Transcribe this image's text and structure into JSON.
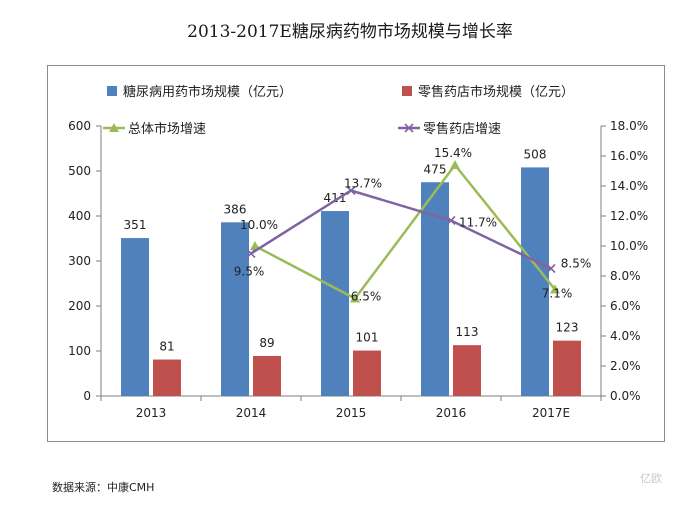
{
  "title": "2013-2017E糖尿病药物市场规模与增长率",
  "source": "数据来源：中康CMH",
  "watermark": "亿欧",
  "chart_data": {
    "type": "bar+line",
    "title": "2013-2017E糖尿病药物市场规模与增长率",
    "categories": [
      "2013",
      "2014",
      "2015",
      "2016",
      "2017E"
    ],
    "bar_series": [
      {
        "name": "糖尿病用药市场规模（亿元）",
        "values": [
          351,
          386,
          411,
          475,
          508
        ],
        "color": "#4f81bd"
      },
      {
        "name": "零售药店市场规模（亿元）",
        "values": [
          81,
          89,
          101,
          113,
          123
        ],
        "color": "#c0504d"
      }
    ],
    "line_series": [
      {
        "name": "总体市场增速",
        "marker": "triangle",
        "x": [
          "2014",
          "2015",
          "2016",
          "2017E"
        ],
        "values": [
          10.0,
          6.5,
          15.4,
          7.1
        ],
        "labels": [
          "10.0%",
          "6.5%",
          "15.4%",
          "7.1%"
        ],
        "color": "#9bbb59"
      },
      {
        "name": "零售药店增速",
        "marker": "x",
        "x": [
          "2014",
          "2015",
          "2016",
          "2017E"
        ],
        "values": [
          9.5,
          13.7,
          11.7,
          8.5
        ],
        "labels": [
          "9.5%",
          "13.7%",
          "11.7%",
          "8.5%"
        ],
        "color": "#8064a2"
      }
    ],
    "y_left": {
      "min": 0,
      "max": 600,
      "step": 100,
      "ticks": [
        "0",
        "100",
        "200",
        "300",
        "400",
        "500",
        "600"
      ]
    },
    "y_right": {
      "min": 0,
      "max": 18,
      "step": 2,
      "ticks": [
        "0.0%",
        "2.0%",
        "4.0%",
        "6.0%",
        "8.0%",
        "10.0%",
        "12.0%",
        "14.0%",
        "16.0%",
        "18.0%"
      ]
    },
    "legend": "top"
  }
}
